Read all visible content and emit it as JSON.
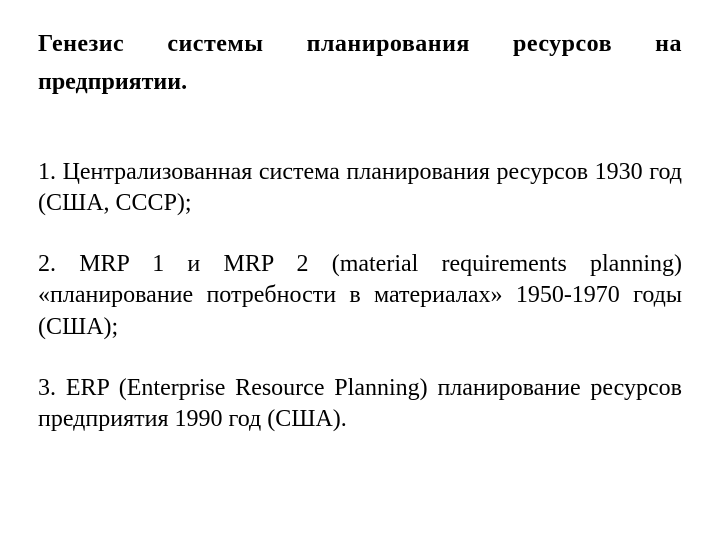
{
  "heading_line1": "Генезис системы планирования ресурсов на",
  "heading_line2": "предприятии.",
  "items": [
    "1. Централизованная система планирования ресурсов 1930 год (США, СССР);",
    "2. MRP 1 и MRP 2 (material requirements planning) «планирование потребности в материалах» 1950-1970 годы (США);",
    "3. ERP (Enterprise Resource Planning) планирование ресурсов предприятия 1990 год (США)."
  ],
  "colors": {
    "background": "#ffffff",
    "text": "#000000"
  },
  "typography": {
    "font_family": "Times New Roman",
    "heading_fontsize_pt": 18,
    "body_fontsize_pt": 18,
    "heading_weight": "bold",
    "body_weight": "normal",
    "alignment": "justify"
  }
}
